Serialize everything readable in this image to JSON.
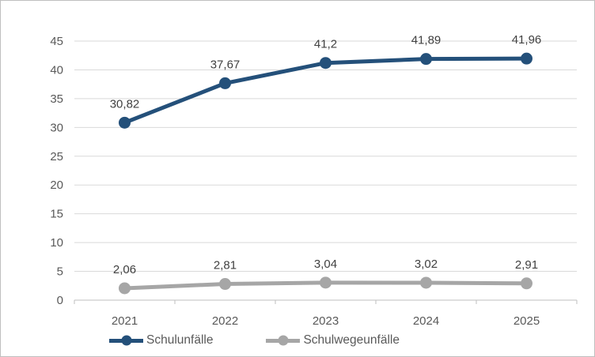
{
  "chart_data": {
    "type": "line",
    "title": "",
    "xlabel": "",
    "ylabel": "",
    "categories": [
      "2021",
      "2022",
      "2023",
      "2024",
      "2025"
    ],
    "series": [
      {
        "name": "Schulunfälle",
        "values": [
          30.82,
          37.67,
          41.2,
          41.89,
          41.96
        ],
        "labels": [
          "30,82",
          "37,67",
          "41,2",
          "41,89",
          "41,96"
        ],
        "color": "#24507a"
      },
      {
        "name": "Schulwegeunfälle",
        "values": [
          2.06,
          2.81,
          3.04,
          3.02,
          2.91
        ],
        "labels": [
          "2,06",
          "2,81",
          "3,04",
          "3,02",
          "2,91"
        ],
        "color": "#a6a6a6"
      }
    ],
    "ylim": [
      0,
      45
    ],
    "ytick_step": 5,
    "grid": true,
    "legend_position": "bottom"
  },
  "colors": {
    "gridline": "#d9d9d9",
    "axis_line": "#bfbfbf",
    "axis_text": "#595959",
    "data_label_text": "#404040",
    "frame_border": "#bfbfbf",
    "background": "#ffffff"
  }
}
